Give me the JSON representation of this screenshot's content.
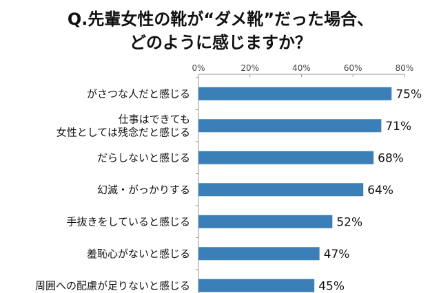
{
  "chart_data": {
    "type": "bar",
    "orientation": "horizontal",
    "title_lines": [
      "Q.先輩女性の靴が“ダメ靴”だった場合、",
      "どのように感じますか？"
    ],
    "categories": [
      [
        "がさつな人だと感じる"
      ],
      [
        "仕事はできても",
        "女性としては残念だと感じる"
      ],
      [
        "だらしないと感じる"
      ],
      [
        "幻滅・がっかりする"
      ],
      [
        "手抜きをしていると感じる"
      ],
      [
        "羞恥心がないと感じる"
      ],
      [
        "周囲への配慮が足りないと感じる"
      ]
    ],
    "values": [
      75,
      71,
      68,
      64,
      52,
      47,
      45
    ],
    "value_labels": [
      "75%",
      "71%",
      "68%",
      "64%",
      "52%",
      "47%",
      "45%"
    ],
    "xlim": [
      0,
      80
    ],
    "x_ticks": [
      0,
      20,
      40,
      60,
      80
    ],
    "x_tick_labels": [
      "0%",
      "20%",
      "40%",
      "60%",
      "80%"
    ],
    "x_axis_position": "top",
    "grid": false,
    "legend": "none",
    "bar_color": "#3a7fb8"
  }
}
